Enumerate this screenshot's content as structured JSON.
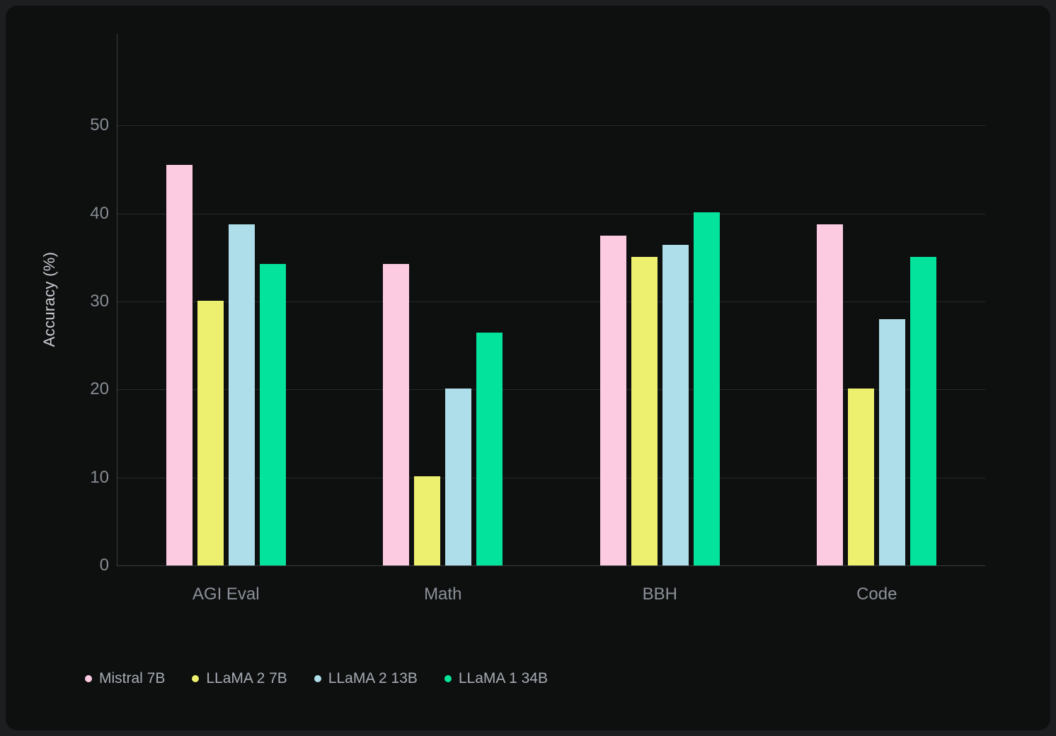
{
  "chart_data": {
    "type": "bar",
    "categories": [
      "AGI Eval",
      "Math",
      "BBH",
      "Code"
    ],
    "series": [
      {
        "name": "Mistral 7B",
        "color": "#fccbe2",
        "values": [
          45.5,
          34.3,
          37.5,
          38.8
        ]
      },
      {
        "name": "LLaMA 2 7B",
        "color": "#edf06f",
        "values": [
          30.1,
          10.1,
          35.1,
          20.1
        ]
      },
      {
        "name": "LLaMA 2 13B",
        "color": "#addee9",
        "values": [
          38.8,
          20.1,
          36.4,
          28.0
        ]
      },
      {
        "name": "LLaMA 1 34B",
        "color": "#03e39c",
        "values": [
          34.3,
          26.5,
          40.1,
          35.1
        ]
      }
    ],
    "title": "",
    "xlabel": "",
    "ylabel": "Accuracy (%)",
    "ylim": [
      0,
      60.4
    ],
    "yticks": [
      0,
      10,
      20,
      30,
      40,
      50
    ],
    "grid": true,
    "legend_position": "bottom-left"
  },
  "colors": {
    "page_bg": "#1d1e20",
    "card_bg": "#0e0f0f",
    "grid_line": "#28292b",
    "axis_line": "#3a3d3f",
    "tick_text": "#878d95",
    "category_text": "#8b9199",
    "ylabel_text": "#c9ced3",
    "legend_text": "#a6adb4"
  },
  "legend": {
    "items": [
      "Mistral 7B",
      "LLaMA 2 7B",
      "LLaMA 2 13B",
      "LLaMA 1 34B"
    ]
  }
}
